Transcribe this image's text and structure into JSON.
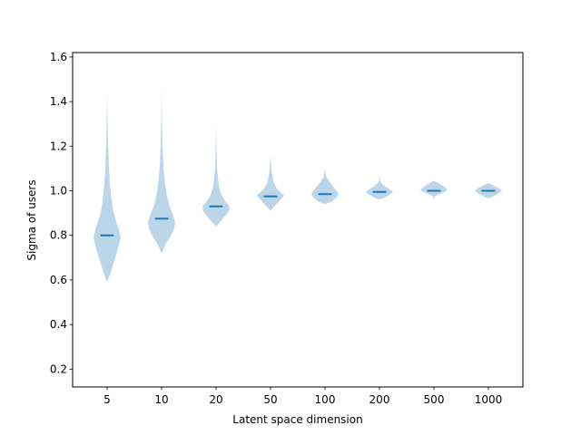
{
  "chart_data": {
    "type": "violin",
    "xlabel": "Latent space dimension",
    "ylabel": "Sigma of users",
    "categories": [
      "5",
      "10",
      "20",
      "50",
      "100",
      "200",
      "500",
      "1000"
    ],
    "ylim": [
      0.12,
      1.62
    ],
    "yticks": [
      0.2,
      0.4,
      0.6,
      0.8,
      1.0,
      1.2,
      1.4,
      1.6
    ],
    "ytick_labels": [
      "0.2",
      "0.4",
      "0.6",
      "0.8",
      "1.0",
      "1.2",
      "1.4",
      "1.6"
    ],
    "grid": false,
    "colors": {
      "body": "#1f77b4",
      "median": "#1f77b4"
    },
    "violins": [
      {
        "category": "5",
        "median": 0.8,
        "min": 0.59,
        "max": 1.45,
        "profile": [
          [
            0.59,
            0.0
          ],
          [
            0.63,
            0.25
          ],
          [
            0.67,
            0.45
          ],
          [
            0.71,
            0.65
          ],
          [
            0.75,
            0.85
          ],
          [
            0.79,
            1.0
          ],
          [
            0.83,
            0.85
          ],
          [
            0.87,
            0.62
          ],
          [
            0.92,
            0.42
          ],
          [
            0.98,
            0.28
          ],
          [
            1.05,
            0.18
          ],
          [
            1.15,
            0.1
          ],
          [
            1.25,
            0.05
          ],
          [
            1.35,
            0.02
          ],
          [
            1.45,
            0.0
          ]
        ]
      },
      {
        "category": "10",
        "median": 0.875,
        "min": 0.72,
        "max": 1.47,
        "profile": [
          [
            0.72,
            0.0
          ],
          [
            0.76,
            0.3
          ],
          [
            0.8,
            0.7
          ],
          [
            0.83,
            0.92
          ],
          [
            0.86,
            1.0
          ],
          [
            0.89,
            0.85
          ],
          [
            0.93,
            0.58
          ],
          [
            0.98,
            0.38
          ],
          [
            1.04,
            0.24
          ],
          [
            1.1,
            0.14
          ],
          [
            1.2,
            0.07
          ],
          [
            1.3,
            0.03
          ],
          [
            1.4,
            0.01
          ],
          [
            1.47,
            0.0
          ]
        ]
      },
      {
        "category": "20",
        "median": 0.93,
        "min": 0.84,
        "max": 1.29,
        "profile": [
          [
            0.84,
            0.0
          ],
          [
            0.86,
            0.3
          ],
          [
            0.89,
            0.72
          ],
          [
            0.91,
            0.95
          ],
          [
            0.93,
            1.0
          ],
          [
            0.95,
            0.72
          ],
          [
            0.98,
            0.4
          ],
          [
            1.01,
            0.25
          ],
          [
            1.05,
            0.15
          ],
          [
            1.1,
            0.08
          ],
          [
            1.18,
            0.03
          ],
          [
            1.29,
            0.0
          ]
        ]
      },
      {
        "category": "50",
        "median": 0.975,
        "min": 0.91,
        "max": 1.16,
        "profile": [
          [
            0.91,
            0.0
          ],
          [
            0.93,
            0.28
          ],
          [
            0.95,
            0.58
          ],
          [
            0.97,
            0.88
          ],
          [
            0.98,
            1.0
          ],
          [
            0.99,
            0.8
          ],
          [
            1.01,
            0.45
          ],
          [
            1.04,
            0.22
          ],
          [
            1.08,
            0.1
          ],
          [
            1.12,
            0.04
          ],
          [
            1.16,
            0.0
          ]
        ]
      },
      {
        "category": "100",
        "median": 0.985,
        "min": 0.94,
        "max": 1.1,
        "profile": [
          [
            0.94,
            0.0
          ],
          [
            0.95,
            0.45
          ],
          [
            0.97,
            0.85
          ],
          [
            0.985,
            1.0
          ],
          [
            1.0,
            0.85
          ],
          [
            1.02,
            0.58
          ],
          [
            1.04,
            0.35
          ],
          [
            1.06,
            0.12
          ],
          [
            1.08,
            0.04
          ],
          [
            1.1,
            0.0
          ]
        ]
      },
      {
        "category": "200",
        "median": 0.995,
        "min": 0.96,
        "max": 1.07,
        "profile": [
          [
            0.96,
            0.0
          ],
          [
            0.97,
            0.4
          ],
          [
            0.985,
            0.8
          ],
          [
            0.995,
            1.0
          ],
          [
            1.005,
            0.8
          ],
          [
            1.02,
            0.4
          ],
          [
            1.035,
            0.1
          ],
          [
            1.05,
            0.03
          ],
          [
            1.07,
            0.0
          ]
        ]
      },
      {
        "category": "500",
        "median": 1.0,
        "min": 0.96,
        "max": 1.045,
        "profile": [
          [
            0.96,
            0.0
          ],
          [
            0.975,
            0.06
          ],
          [
            0.985,
            0.4
          ],
          [
            0.995,
            0.8
          ],
          [
            1.005,
            1.0
          ],
          [
            1.02,
            0.7
          ],
          [
            1.035,
            0.3
          ],
          [
            1.045,
            0.0
          ]
        ]
      },
      {
        "category": "1000",
        "median": 1.0,
        "min": 0.965,
        "max": 1.035,
        "profile": [
          [
            0.965,
            0.0
          ],
          [
            0.975,
            0.35
          ],
          [
            0.99,
            0.8
          ],
          [
            1.0,
            1.0
          ],
          [
            1.01,
            0.8
          ],
          [
            1.025,
            0.35
          ],
          [
            1.035,
            0.0
          ]
        ]
      }
    ]
  }
}
